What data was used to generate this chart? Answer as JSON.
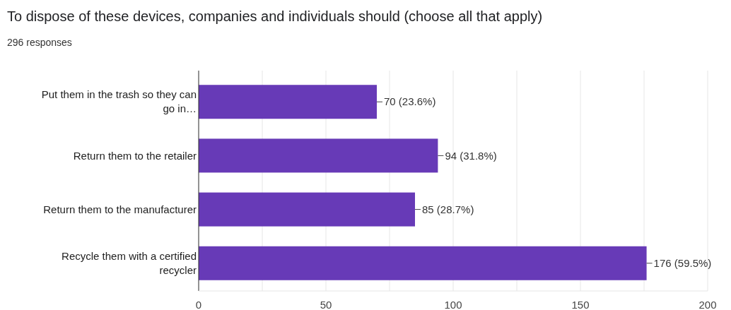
{
  "chart_data": {
    "type": "bar",
    "orientation": "horizontal",
    "title": "To dispose of these devices, companies and individuals should (choose all that apply)",
    "subtitle": "296 responses",
    "categories": [
      "Put them in the trash so they can go in…",
      "Return them to the retailer",
      "Return them to the manufacturer",
      "Recycle them with a certified recycler"
    ],
    "values": [
      70,
      94,
      85,
      176
    ],
    "value_labels": [
      "70 (23.6%)",
      "94 (31.8%)",
      "85 (28.7%)",
      "176 (59.5%)"
    ],
    "color": "#673ab7",
    "xlim": [
      0,
      200
    ],
    "xticks": [
      0,
      {
        "value": 25,
        "label": null
      },
      50,
      {
        "value": 75,
        "label": null
      },
      100,
      {
        "value": 125,
        "label": null
      },
      150,
      {
        "value": 175,
        "label": null
      },
      200
    ],
    "grid": "x"
  }
}
